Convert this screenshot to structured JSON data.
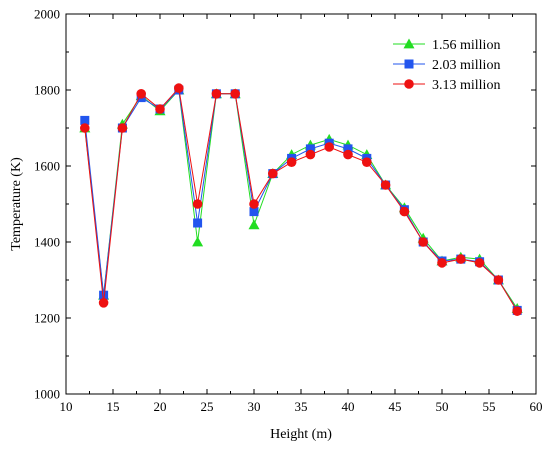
{
  "chart_data": {
    "type": "line",
    "title": "",
    "xlabel": "Height (m)",
    "ylabel": "Temperature (K)",
    "xlim": [
      10,
      60
    ],
    "ylim": [
      1000,
      2000
    ],
    "x_ticks": [
      "10",
      "15",
      "20",
      "25",
      "30",
      "35",
      "40",
      "45",
      "50",
      "55",
      "60"
    ],
    "y_ticks": [
      "1000",
      "1200",
      "1400",
      "1600",
      "1800",
      "2000"
    ],
    "grid": false,
    "legend_position": "top-right",
    "x": [
      12,
      14,
      16,
      18,
      20,
      22,
      24,
      26,
      28,
      30,
      32,
      34,
      36,
      38,
      40,
      42,
      44,
      46,
      48,
      50,
      52,
      54,
      56,
      58
    ],
    "series": [
      {
        "name": "1.56 million",
        "color": "#22dd22",
        "marker": "triangle",
        "values": [
          1700,
          1260,
          1710,
          1785,
          1745,
          1800,
          1400,
          1790,
          1790,
          1445,
          1580,
          1630,
          1655,
          1670,
          1655,
          1630,
          1550,
          1490,
          1410,
          1350,
          1360,
          1355,
          1300,
          1225
        ]
      },
      {
        "name": "2.03 million",
        "color": "#2255ee",
        "marker": "square",
        "values": [
          1720,
          1260,
          1700,
          1780,
          1750,
          1800,
          1450,
          1790,
          1790,
          1480,
          1580,
          1620,
          1645,
          1660,
          1645,
          1620,
          1550,
          1485,
          1400,
          1350,
          1355,
          1348,
          1300,
          1220
        ]
      },
      {
        "name": "3.13 million",
        "color": "#ee1111",
        "marker": "circle",
        "values": [
          1700,
          1240,
          1700,
          1790,
          1750,
          1805,
          1500,
          1790,
          1790,
          1500,
          1580,
          1610,
          1630,
          1650,
          1630,
          1610,
          1550,
          1480,
          1400,
          1345,
          1355,
          1345,
          1300,
          1218
        ]
      }
    ]
  }
}
